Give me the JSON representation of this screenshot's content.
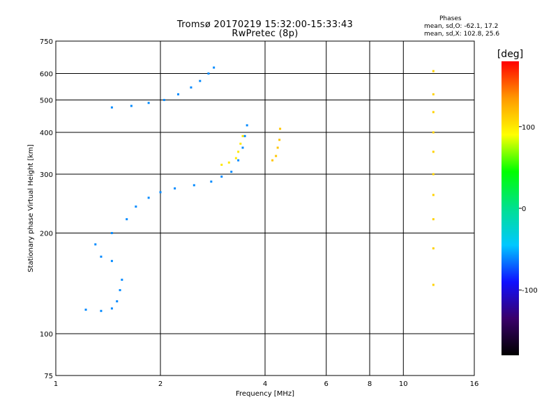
{
  "header": {
    "title_line1": "Tromsø 20170219 15:32:00-15:33:43",
    "title_line2": "RwPretec (8p)",
    "phases_heading": "Phases",
    "phases_o": "mean, sd,O: -62.1, 17.2",
    "phases_x": "mean, sd,X: 102.8, 25.6"
  },
  "chart_data": {
    "type": "scatter",
    "title": "Tromsø 20170219 15:32:00-15:33:43",
    "subtitle": "RwPretec (8p)",
    "xlabel": "Frequency [MHz]",
    "ylabel": "Stationary phase Virtual Height [km]",
    "x_scale": "log",
    "y_scale": "log",
    "xlim": [
      1,
      16
    ],
    "ylim": [
      75,
      750
    ],
    "x_ticks": [
      1,
      2,
      4,
      6,
      8,
      10,
      16
    ],
    "y_ticks": [
      75,
      100,
      200,
      300,
      400,
      500,
      600,
      750
    ],
    "grid": true,
    "colorbar": {
      "label": "[deg]",
      "range": [
        -180,
        180
      ],
      "ticks": [
        100,
        0,
        -100
      ],
      "colors": [
        "#000000",
        "#3a006a",
        "#1010ff",
        "#00c8ff",
        "#00e090",
        "#00ff00",
        "#ffff00",
        "#ff9900",
        "#ff0000"
      ]
    },
    "series": [
      {
        "cluster": "F2 ordinary trace",
        "phase_deg": -60,
        "points": [
          [
            1.22,
            118
          ],
          [
            1.35,
            117
          ],
          [
            1.45,
            119
          ],
          [
            1.5,
            125
          ],
          [
            1.53,
            135
          ],
          [
            1.55,
            145
          ],
          [
            1.45,
            165
          ],
          [
            1.35,
            170
          ],
          [
            1.3,
            185
          ],
          [
            1.45,
            200
          ],
          [
            1.6,
            220
          ],
          [
            1.7,
            240
          ],
          [
            1.85,
            255
          ],
          [
            2.0,
            265
          ],
          [
            2.2,
            272
          ],
          [
            2.5,
            278
          ],
          [
            2.8,
            285
          ],
          [
            3.0,
            295
          ],
          [
            3.2,
            305
          ],
          [
            3.35,
            330
          ],
          [
            3.45,
            360
          ],
          [
            3.5,
            390
          ],
          [
            3.55,
            420
          ]
        ]
      },
      {
        "cluster": "F2 multi-hop trace",
        "phase_deg": -60,
        "points": [
          [
            1.45,
            475
          ],
          [
            1.65,
            480
          ],
          [
            1.85,
            490
          ],
          [
            2.05,
            500
          ],
          [
            2.25,
            520
          ],
          [
            2.45,
            545
          ],
          [
            2.6,
            570
          ],
          [
            2.75,
            600
          ],
          [
            2.85,
            625
          ]
        ]
      },
      {
        "cluster": "X trace low",
        "phase_deg": 100,
        "points": [
          [
            3.0,
            320
          ],
          [
            3.15,
            325
          ],
          [
            3.3,
            335
          ],
          [
            3.35,
            350
          ],
          [
            3.4,
            370
          ],
          [
            3.45,
            390
          ]
        ]
      },
      {
        "cluster": "X trace high",
        "phase_deg": 115,
        "points": [
          [
            4.2,
            330
          ],
          [
            4.3,
            340
          ],
          [
            4.35,
            360
          ],
          [
            4.4,
            380
          ],
          [
            4.42,
            410
          ]
        ]
      },
      {
        "cluster": "Vertical column",
        "phase_deg": 110,
        "points": [
          [
            12.2,
            140
          ],
          [
            12.2,
            180
          ],
          [
            12.2,
            220
          ],
          [
            12.2,
            260
          ],
          [
            12.2,
            300
          ],
          [
            12.2,
            350
          ],
          [
            12.2,
            400
          ],
          [
            12.2,
            460
          ],
          [
            12.2,
            520
          ],
          [
            12.2,
            610
          ]
        ]
      }
    ]
  }
}
